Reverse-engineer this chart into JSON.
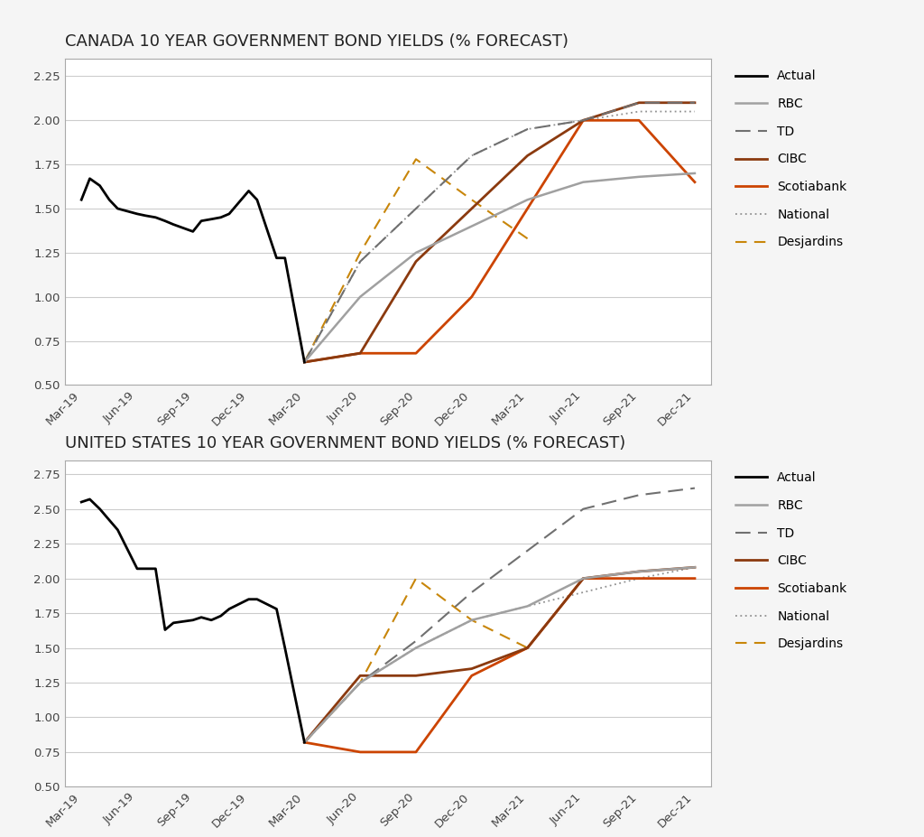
{
  "canada_title": "CANADA 10 YEAR GOVERNMENT BOND YIELDS (% FORECAST)",
  "us_title": "UNITED STATES 10 YEAR GOVERNMENT BOND YIELDS (% FORECAST)",
  "x_labels": [
    "Mar-19",
    "Jun-19",
    "Sep-19",
    "Dec-19",
    "Mar-20",
    "Jun-20",
    "Sep-20",
    "Dec-20",
    "Mar-21",
    "Jun-21",
    "Sep-21",
    "Dec-21"
  ],
  "canada": {
    "actual_x": [
      0,
      0.15,
      0.33,
      0.5,
      0.65,
      1.0,
      1.15,
      1.33,
      1.5,
      1.65,
      2.0,
      2.15,
      2.33,
      2.5,
      2.65,
      3.0,
      3.15,
      3.5,
      3.65,
      4.0
    ],
    "actual_y": [
      1.55,
      1.67,
      1.63,
      1.55,
      1.5,
      1.47,
      1.46,
      1.45,
      1.43,
      1.41,
      1.37,
      1.43,
      1.44,
      1.45,
      1.47,
      1.6,
      1.55,
      1.22,
      1.22,
      0.63
    ],
    "rbc_x": [
      4,
      5,
      6,
      7,
      8,
      9,
      10,
      11
    ],
    "rbc_y": [
      0.63,
      1.0,
      1.25,
      1.4,
      1.55,
      1.65,
      1.68,
      1.7
    ],
    "td_x": [
      4,
      5,
      6,
      7,
      8,
      9,
      10,
      11
    ],
    "td_y": [
      0.63,
      1.2,
      1.5,
      1.8,
      1.95,
      2.0,
      2.1,
      2.1
    ],
    "cibc_x": [
      4,
      5,
      6,
      7,
      8,
      9,
      10,
      11
    ],
    "cibc_y": [
      0.63,
      0.68,
      1.2,
      1.5,
      1.8,
      2.0,
      2.1,
      2.1
    ],
    "scotiabank_x": [
      4,
      5,
      6,
      7,
      8,
      9,
      10,
      11
    ],
    "scotiabank_y": [
      0.63,
      0.68,
      0.68,
      1.0,
      1.5,
      2.0,
      2.0,
      1.65
    ],
    "national_x": [
      4,
      5,
      6,
      7,
      8,
      9,
      10,
      11
    ],
    "national_y": [
      0.63,
      1.2,
      1.5,
      1.8,
      1.95,
      2.0,
      2.05,
      2.05
    ],
    "desjardins_x": [
      4,
      5,
      6,
      7,
      8
    ],
    "desjardins_y": [
      0.63,
      1.25,
      1.78,
      1.55,
      1.33
    ],
    "ylim": [
      0.5,
      2.35
    ],
    "yticks": [
      0.5,
      0.75,
      1.0,
      1.25,
      1.5,
      1.75,
      2.0,
      2.25
    ]
  },
  "us": {
    "actual_x": [
      0,
      0.15,
      0.33,
      0.5,
      0.65,
      1.0,
      1.15,
      1.33,
      1.5,
      1.65,
      2.0,
      2.15,
      2.33,
      2.5,
      2.65,
      3.0,
      3.15,
      3.5,
      3.65,
      4.0
    ],
    "actual_y": [
      2.55,
      2.57,
      2.5,
      2.42,
      2.35,
      2.07,
      2.07,
      2.07,
      1.63,
      1.68,
      1.7,
      1.72,
      1.7,
      1.73,
      1.78,
      1.85,
      1.85,
      1.78,
      1.5,
      0.82
    ],
    "rbc_x": [
      4,
      5,
      6,
      7,
      8,
      9,
      10,
      11
    ],
    "rbc_y": [
      0.82,
      1.25,
      1.5,
      1.7,
      1.8,
      2.0,
      2.05,
      2.08
    ],
    "td_x": [
      4,
      5,
      6,
      7,
      8,
      9,
      10,
      11
    ],
    "td_y": [
      0.82,
      1.25,
      1.55,
      1.9,
      2.2,
      2.5,
      2.6,
      2.65
    ],
    "cibc_x": [
      4,
      5,
      6,
      7,
      8,
      9,
      10,
      11
    ],
    "cibc_y": [
      0.82,
      1.3,
      1.3,
      1.35,
      1.5,
      2.0,
      2.05,
      2.08
    ],
    "scotiabank_x": [
      4,
      5,
      6,
      7,
      8,
      9,
      10,
      11
    ],
    "scotiabank_y": [
      0.82,
      0.75,
      0.75,
      1.3,
      1.5,
      2.0,
      2.0,
      2.0
    ],
    "national_x": [
      4,
      5,
      6,
      7,
      8,
      9,
      10,
      11
    ],
    "national_y": [
      0.82,
      1.25,
      1.5,
      1.7,
      1.8,
      1.9,
      2.0,
      2.08
    ],
    "desjardins_x": [
      4,
      5,
      6,
      7,
      8
    ],
    "desjardins_y": [
      0.82,
      1.25,
      2.0,
      1.7,
      1.5
    ],
    "ylim": [
      0.5,
      2.85
    ],
    "yticks": [
      0.5,
      0.75,
      1.0,
      1.25,
      1.5,
      1.75,
      2.0,
      2.25,
      2.5,
      2.75
    ]
  },
  "color_actual": "#000000",
  "color_rbc": "#a0a0a0",
  "color_td": "#707070",
  "color_cibc": "#8B3A0F",
  "color_scotiabank": "#CC4400",
  "color_national": "#909090",
  "color_desjardins": "#C8860A",
  "background_color": "#f5f5f5",
  "plot_bg": "#ffffff"
}
